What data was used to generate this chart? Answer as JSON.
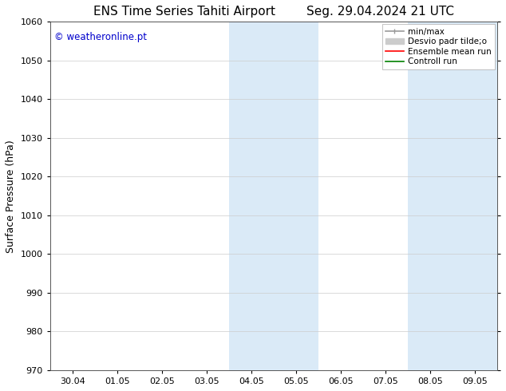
{
  "title_left": "ENS Time Series Tahiti Airport",
  "title_right": "Seg. 29.04.2024 21 UTC",
  "ylabel": "Surface Pressure (hPa)",
  "ylim": [
    970,
    1060
  ],
  "yticks": [
    970,
    980,
    990,
    1000,
    1010,
    1020,
    1030,
    1040,
    1050,
    1060
  ],
  "xlim_start": -0.5,
  "xlim_end": 9.5,
  "xtick_labels": [
    "30.04",
    "01.05",
    "02.05",
    "03.05",
    "04.05",
    "05.05",
    "06.05",
    "07.05",
    "08.05",
    "09.05"
  ],
  "xtick_positions": [
    0,
    1,
    2,
    3,
    4,
    5,
    6,
    7,
    8,
    9
  ],
  "shaded_regions": [
    {
      "x_start": 3.5,
      "x_end": 4.5
    },
    {
      "x_start": 4.5,
      "x_end": 5.5
    },
    {
      "x_start": 7.5,
      "x_end": 8.5
    },
    {
      "x_start": 8.5,
      "x_end": 9.5
    }
  ],
  "shaded_color": "#daeaf7",
  "watermark": "© weatheronline.pt",
  "watermark_color": "#0000cc",
  "background_color": "#ffffff",
  "grid_color": "#cccccc",
  "title_fontsize": 11,
  "tick_fontsize": 8,
  "ylabel_fontsize": 9,
  "legend_fontsize": 7.5
}
